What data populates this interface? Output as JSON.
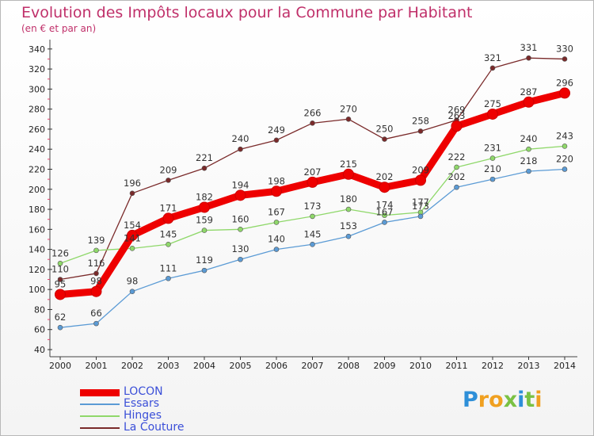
{
  "chart_data": {
    "type": "line",
    "title": "Evolution des Impôts locaux pour la Commune par Habitant",
    "subtitle": "(en € et par an)",
    "x": [
      "2000",
      "2001",
      "2002",
      "2003",
      "2004",
      "2005",
      "2006",
      "2007",
      "2008",
      "2009",
      "2010",
      "2011",
      "2012",
      "2013",
      "2014"
    ],
    "ylim": [
      40,
      340
    ],
    "yticks": [
      40,
      60,
      80,
      100,
      120,
      140,
      160,
      180,
      200,
      220,
      240,
      260,
      280,
      300,
      320,
      340
    ],
    "grid": false,
    "legend_position": "bottom-left",
    "series": [
      {
        "name": "LOCON",
        "color": "#ee0000",
        "values": [
          95,
          98,
          154,
          171,
          182,
          194,
          198,
          207,
          215,
          202,
          209,
          263,
          275,
          287,
          296
        ]
      },
      {
        "name": "Essars",
        "color": "#5b9bd5",
        "values": [
          62,
          66,
          98,
          111,
          119,
          130,
          140,
          145,
          153,
          167,
          173,
          202,
          210,
          218,
          220
        ]
      },
      {
        "name": "Hinges",
        "color": "#8fd86a",
        "values": [
          126,
          139,
          141,
          145,
          159,
          160,
          167,
          173,
          180,
          174,
          177,
          222,
          231,
          240,
          243
        ]
      },
      {
        "name": "La Couture",
        "color": "#7a2a2a",
        "values": [
          110,
          116,
          196,
          209,
          221,
          240,
          249,
          266,
          270,
          250,
          258,
          269,
          321,
          331,
          330
        ]
      }
    ]
  },
  "branding": {
    "logo_letters": [
      "P",
      "r",
      "o",
      "x",
      "i",
      "t",
      "i"
    ],
    "logo_colors": [
      "#2e8fd8",
      "#f0a020",
      "#f0a020",
      "#7ac143",
      "#2e8fd8",
      "#7ac143",
      "#f0a020"
    ]
  }
}
